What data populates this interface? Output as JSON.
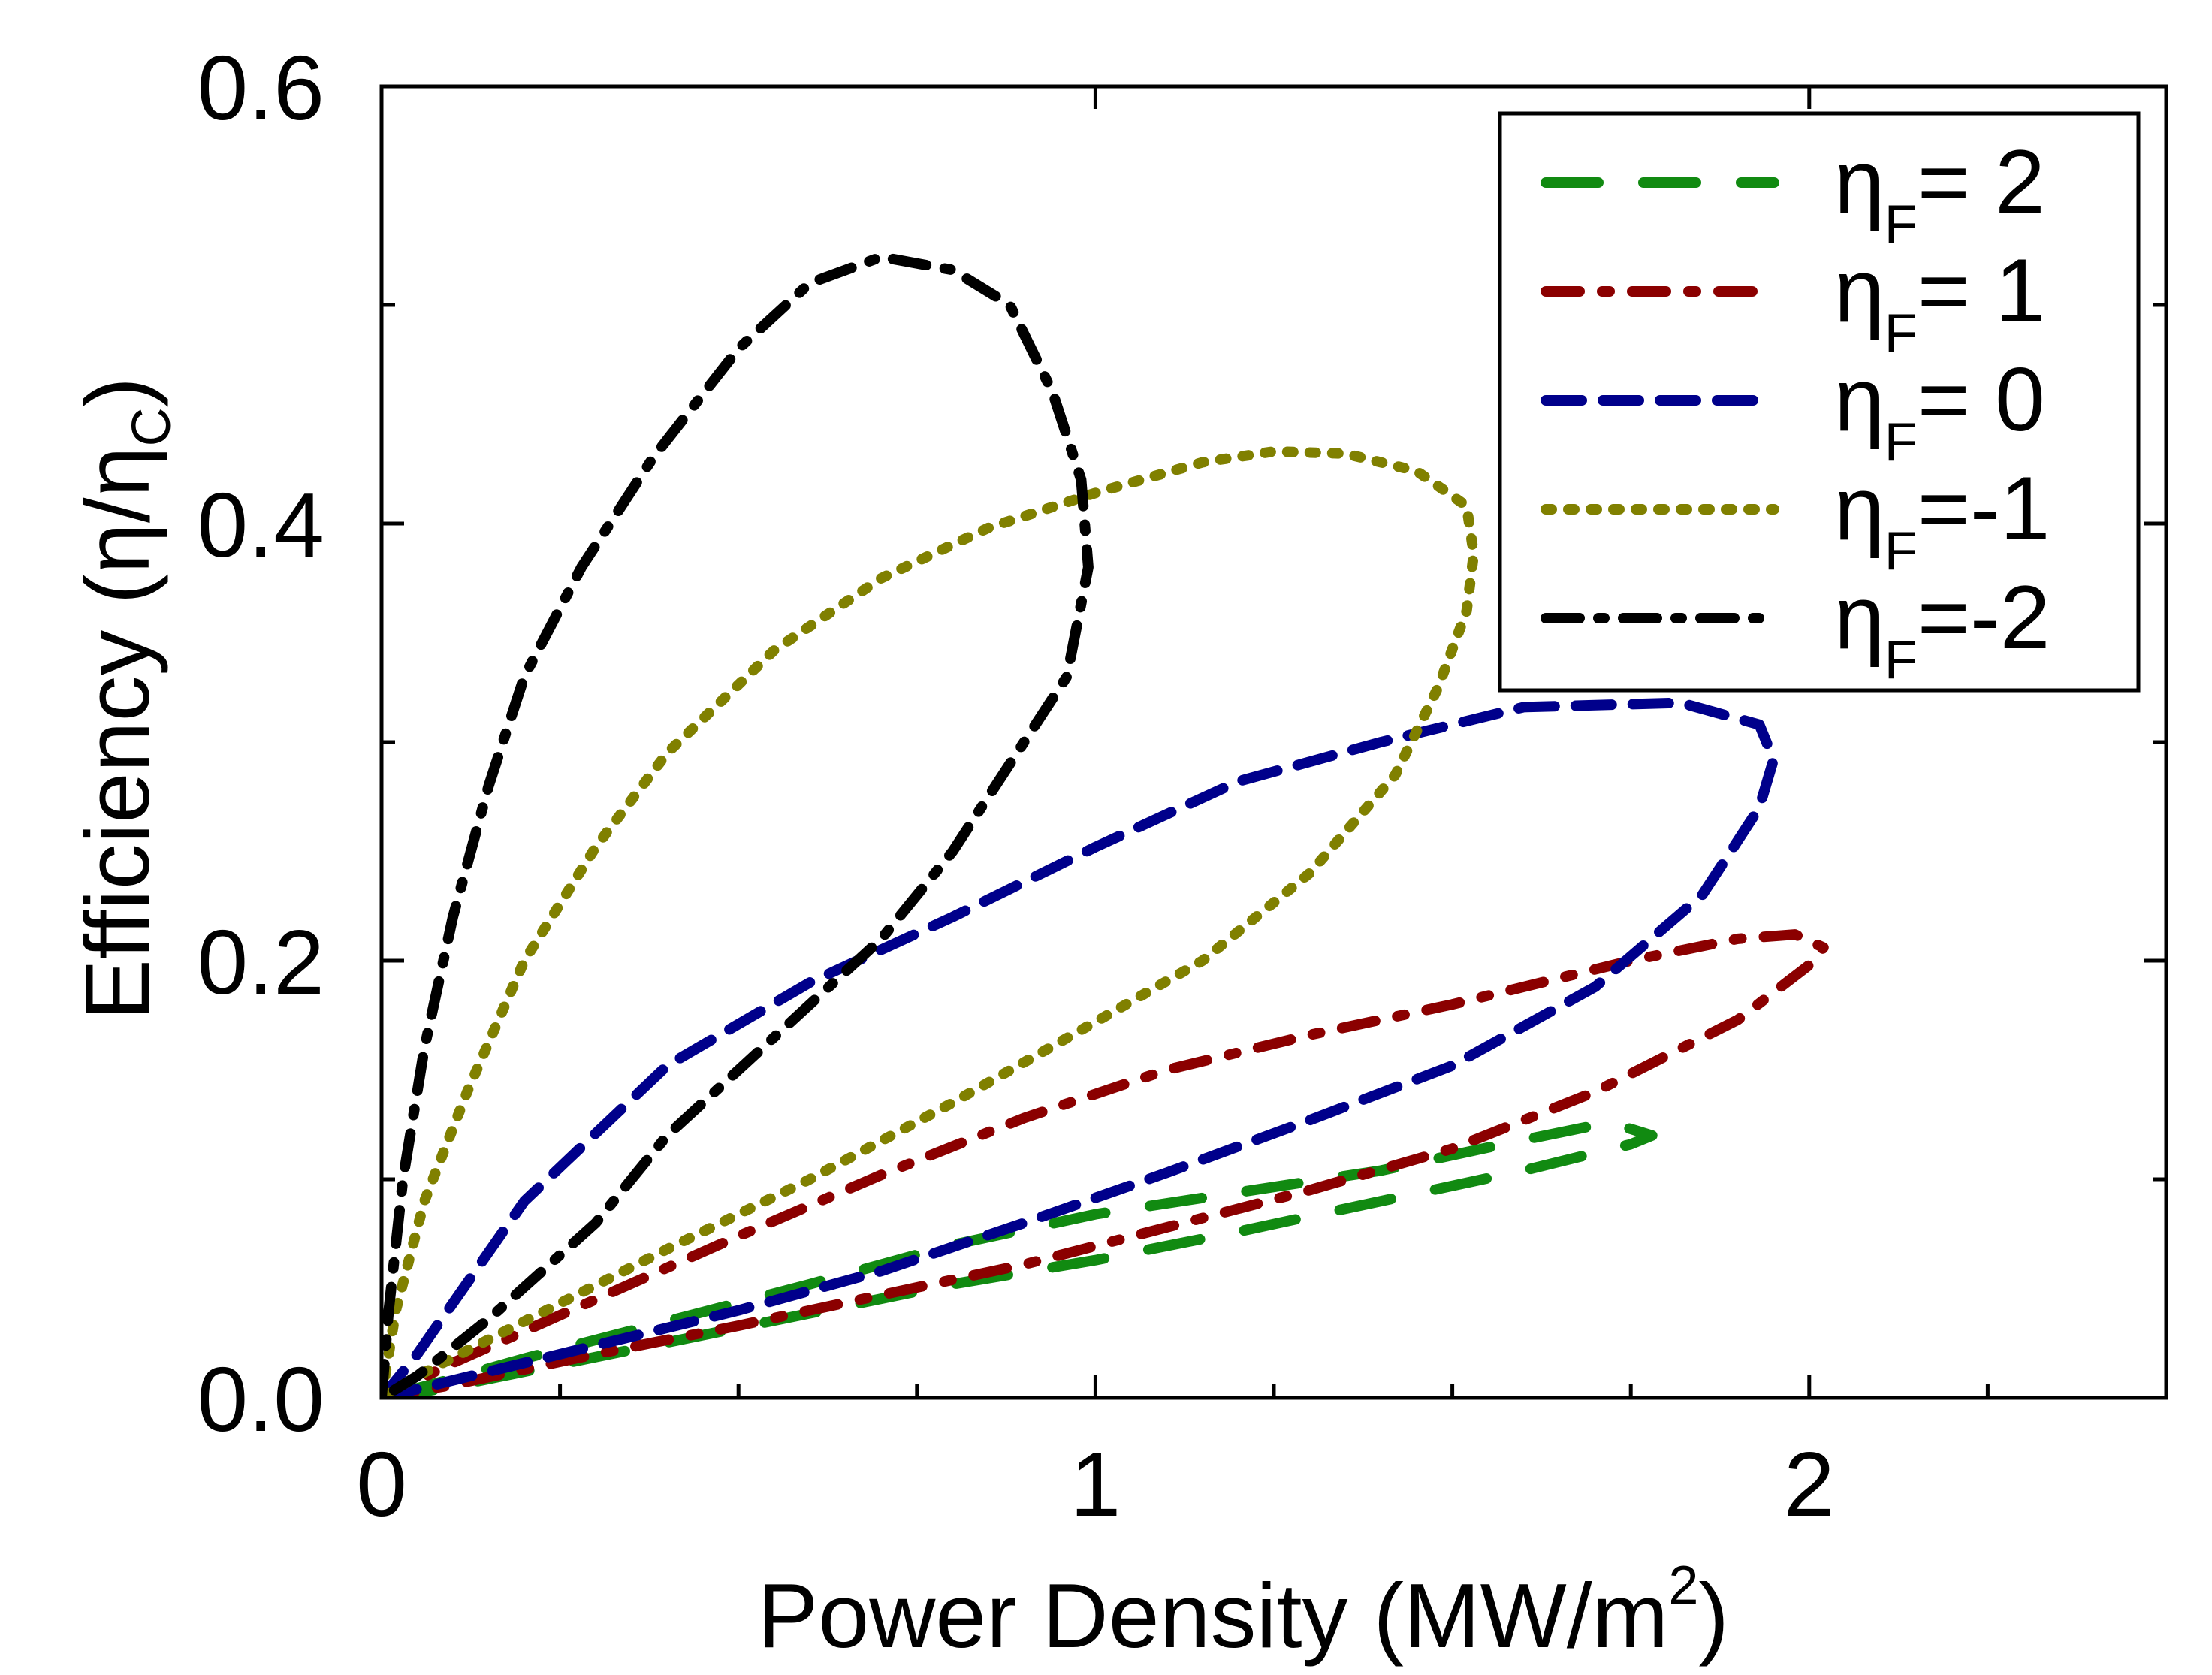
{
  "chart_data": {
    "type": "line",
    "xlabel_main": "Power Density (MW/m",
    "xlabel_sup": "2",
    "xlabel_end": ")",
    "ylabel_main": "Efficiency (η/η",
    "ylabel_sub": "C",
    "ylabel_end": ")",
    "xlim": [
      0,
      2.5
    ],
    "ylim": [
      0,
      0.6
    ],
    "x_ticks": [
      "0",
      "1",
      "2"
    ],
    "y_ticks": [
      "0.0",
      "0.2",
      "0.4",
      "0.6"
    ],
    "x_tick_values": [
      0,
      1,
      2
    ],
    "y_tick_values": [
      0.0,
      0.2,
      0.4,
      0.6
    ],
    "x_minor_ticks": [
      0.25,
      0.5,
      0.75,
      1.25,
      1.5,
      1.75,
      2.25,
      2.5
    ],
    "y_minor_ticks": [
      0.1,
      0.3,
      0.5
    ],
    "grid": false,
    "legend_position": "top-right",
    "series": [
      {
        "label_symbol": "η",
        "label_sub": "F",
        "label_value": "= 2",
        "color": "#118a11",
        "dash": "70,60",
        "points": [
          [
            0,
            0
          ],
          [
            0.08,
            0.004
          ],
          [
            0.2,
            0.012
          ],
          [
            0.35,
            0.022
          ],
          [
            0.5,
            0.032
          ],
          [
            0.65,
            0.042
          ],
          [
            0.8,
            0.052
          ],
          [
            1.0,
            0.063
          ],
          [
            1.2,
            0.076
          ],
          [
            1.4,
            0.09
          ],
          [
            1.6,
            0.104
          ],
          [
            1.75,
            0.116
          ],
          [
            1.78,
            0.12
          ],
          [
            1.72,
            0.126
          ],
          [
            1.6,
            0.118
          ],
          [
            1.4,
            0.104
          ],
          [
            1.2,
            0.094
          ],
          [
            1.0,
            0.084
          ],
          [
            0.8,
            0.07
          ],
          [
            0.6,
            0.052
          ],
          [
            0.4,
            0.035
          ],
          [
            0.2,
            0.018
          ],
          [
            0.08,
            0.007
          ],
          [
            0,
            0
          ]
        ]
      },
      {
        "label_symbol": "η",
        "label_sub": "F",
        "label_value": "= 1",
        "color": "#8b0000",
        "dash": "45,30,10,30",
        "points": [
          [
            0,
            0
          ],
          [
            0.1,
            0.006
          ],
          [
            0.3,
            0.02
          ],
          [
            0.5,
            0.033
          ],
          [
            0.7,
            0.047
          ],
          [
            0.9,
            0.061
          ],
          [
            1.1,
            0.078
          ],
          [
            1.3,
            0.095
          ],
          [
            1.5,
            0.114
          ],
          [
            1.7,
            0.14
          ],
          [
            1.9,
            0.173
          ],
          [
            2.0,
            0.198
          ],
          [
            2.02,
            0.206
          ],
          [
            1.98,
            0.212
          ],
          [
            1.9,
            0.21
          ],
          [
            1.75,
            0.2
          ],
          [
            1.5,
            0.18
          ],
          [
            1.3,
            0.166
          ],
          [
            1.1,
            0.15
          ],
          [
            0.9,
            0.128
          ],
          [
            0.7,
            0.102
          ],
          [
            0.5,
            0.074
          ],
          [
            0.3,
            0.045
          ],
          [
            0.1,
            0.016
          ],
          [
            0,
            0
          ]
        ]
      },
      {
        "label_symbol": "η",
        "label_sub": "F",
        "label_value": "= 0",
        "color": "#00008b",
        "dash": "48,28",
        "points": [
          [
            0,
            0
          ],
          [
            0.1,
            0.008
          ],
          [
            0.3,
            0.024
          ],
          [
            0.5,
            0.04
          ],
          [
            0.7,
            0.058
          ],
          [
            0.9,
            0.08
          ],
          [
            1.1,
            0.103
          ],
          [
            1.3,
            0.127
          ],
          [
            1.5,
            0.152
          ],
          [
            1.7,
            0.188
          ],
          [
            1.85,
            0.23
          ],
          [
            1.93,
            0.27
          ],
          [
            1.95,
            0.292
          ],
          [
            1.93,
            0.308
          ],
          [
            1.82,
            0.318
          ],
          [
            1.6,
            0.316
          ],
          [
            1.4,
            0.3
          ],
          [
            1.2,
            0.282
          ],
          [
            1.0,
            0.252
          ],
          [
            0.8,
            0.22
          ],
          [
            0.6,
            0.19
          ],
          [
            0.4,
            0.152
          ],
          [
            0.2,
            0.09
          ],
          [
            0.05,
            0.02
          ],
          [
            0,
            0
          ]
        ]
      },
      {
        "label_symbol": "η",
        "label_sub": "F",
        "label_value": "=-1",
        "color": "#808000",
        "dash": "8,22",
        "points": [
          [
            0,
            0
          ],
          [
            0.02,
            0.04
          ],
          [
            0.06,
            0.09
          ],
          [
            0.12,
            0.14
          ],
          [
            0.2,
            0.2
          ],
          [
            0.3,
            0.252
          ],
          [
            0.4,
            0.295
          ],
          [
            0.55,
            0.342
          ],
          [
            0.7,
            0.375
          ],
          [
            0.85,
            0.398
          ],
          [
            1.0,
            0.414
          ],
          [
            1.15,
            0.428
          ],
          [
            1.25,
            0.433
          ],
          [
            1.35,
            0.432
          ],
          [
            1.45,
            0.424
          ],
          [
            1.52,
            0.408
          ],
          [
            1.53,
            0.386
          ],
          [
            1.52,
            0.36
          ],
          [
            1.48,
            0.325
          ],
          [
            1.42,
            0.285
          ],
          [
            1.3,
            0.24
          ],
          [
            1.15,
            0.2
          ],
          [
            1.0,
            0.172
          ],
          [
            0.8,
            0.135
          ],
          [
            0.6,
            0.1
          ],
          [
            0.4,
            0.068
          ],
          [
            0.2,
            0.035
          ],
          [
            0.05,
            0.01
          ],
          [
            0,
            0
          ]
        ]
      },
      {
        "label_symbol": "η",
        "label_sub": "F",
        "label_value": "=-2",
        "color": "#000000",
        "dash": "45,25,8,25",
        "points": [
          [
            0,
            0
          ],
          [
            0.01,
            0.04
          ],
          [
            0.03,
            0.1
          ],
          [
            0.06,
            0.16
          ],
          [
            0.1,
            0.22
          ],
          [
            0.15,
            0.28
          ],
          [
            0.2,
            0.33
          ],
          [
            0.28,
            0.38
          ],
          [
            0.38,
            0.43
          ],
          [
            0.5,
            0.48
          ],
          [
            0.6,
            0.51
          ],
          [
            0.7,
            0.522
          ],
          [
            0.8,
            0.516
          ],
          [
            0.88,
            0.5
          ],
          [
            0.94,
            0.46
          ],
          [
            0.98,
            0.42
          ],
          [
            0.99,
            0.38
          ],
          [
            0.96,
            0.33
          ],
          [
            0.9,
            0.3
          ],
          [
            0.8,
            0.25
          ],
          [
            0.7,
            0.21
          ],
          [
            0.6,
            0.18
          ],
          [
            0.5,
            0.15
          ],
          [
            0.4,
            0.12
          ],
          [
            0.3,
            0.08
          ],
          [
            0.15,
            0.036
          ],
          [
            0.05,
            0.01
          ],
          [
            0,
            0
          ]
        ]
      }
    ]
  }
}
